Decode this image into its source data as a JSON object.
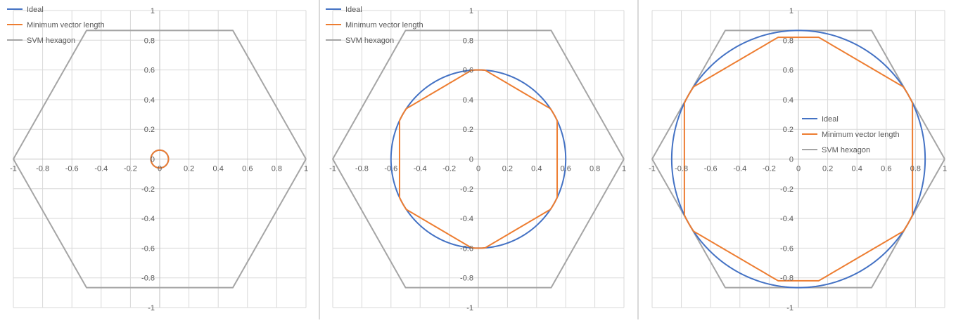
{
  "colors": {
    "ideal": "#4472c4",
    "minimum_vector_length": "#ed7d31",
    "svm_hexagon": "#a5a5a5",
    "gridline": "#d9d9d9",
    "axis": "#bfbfbf",
    "tick_text": "#595959"
  },
  "chart_data": [
    {
      "type": "scatter",
      "xlim": [
        -1,
        1
      ],
      "ylim": [
        -1,
        1
      ],
      "grid": true,
      "legend_position": "top-left",
      "x_ticks": [
        "-1",
        "-0.8",
        "-0.6",
        "-0.4",
        "-0.2",
        "0",
        "0.2",
        "0.4",
        "0.6",
        "0.8",
        "1"
      ],
      "y_ticks": [
        "1",
        "0.8",
        "0.6",
        "0.4",
        "0.2",
        "0",
        "-0.2",
        "-0.4",
        "-0.6",
        "-0.8",
        "-1"
      ],
      "series": [
        {
          "name": "Ideal",
          "shape": "circle",
          "radius": 0.06
        },
        {
          "name": "Minimum vector length",
          "shape": "clipped-hexagon",
          "radius": 0.06,
          "vertex_radius": 0.1
        },
        {
          "name": "SVM hexagon",
          "shape": "hexagon",
          "vertex_radius": 1
        }
      ]
    },
    {
      "type": "scatter",
      "xlim": [
        -1,
        1
      ],
      "ylim": [
        -1,
        1
      ],
      "grid": true,
      "legend_position": "top-left",
      "x_ticks": [
        "-1",
        "-0.8",
        "-0.6",
        "-0.4",
        "-0.2",
        "0",
        "0.2",
        "0.4",
        "0.6",
        "0.8",
        "1"
      ],
      "y_ticks": [
        "1",
        "0.8",
        "0.6",
        "0.4",
        "0.2",
        "0",
        "-0.2",
        "-0.4",
        "-0.6",
        "-0.8",
        "-1"
      ],
      "series": [
        {
          "name": "Ideal",
          "shape": "circle",
          "radius": 0.6
        },
        {
          "name": "Minimum vector length",
          "shape": "clipped-hexagon",
          "radius": 0.6,
          "vertex_radius": 0.625
        },
        {
          "name": "SVM hexagon",
          "shape": "hexagon",
          "vertex_radius": 1
        }
      ]
    },
    {
      "type": "scatter",
      "xlim": [
        -1,
        1
      ],
      "ylim": [
        -1,
        1
      ],
      "grid": true,
      "legend_position": "right",
      "x_ticks": [
        "-1",
        "-0.8",
        "-0.6",
        "-0.4",
        "-0.2",
        "0",
        "0.2",
        "0.4",
        "0.6",
        "0.8",
        "1"
      ],
      "y_ticks": [
        "1",
        "0.8",
        "0.6",
        "0.4",
        "0.2",
        "0",
        "-0.2",
        "-0.4",
        "-0.6",
        "-0.8",
        "-1"
      ],
      "series": [
        {
          "name": "Ideal",
          "shape": "circle",
          "radius": 0.866
        },
        {
          "name": "Minimum vector length",
          "shape": "clipped-hexagon",
          "radius": 0.866,
          "vertex_radius": 0.9,
          "sides_clip_y": 0.82
        },
        {
          "name": "SVM hexagon",
          "shape": "hexagon",
          "vertex_radius": 1
        }
      ]
    }
  ]
}
